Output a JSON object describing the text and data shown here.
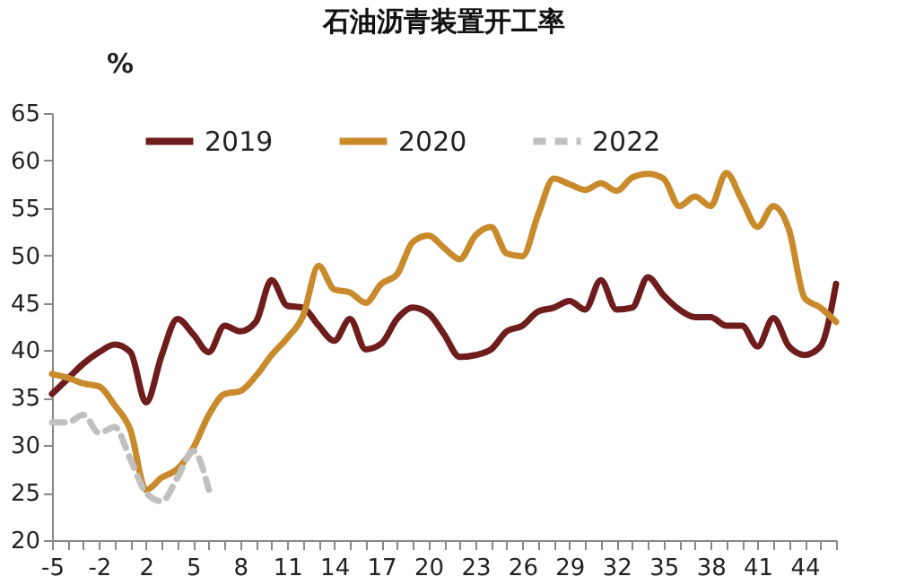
{
  "chart_data": {
    "type": "line",
    "title": "石油沥青装置开工率",
    "ylabel": "%",
    "categories": [
      "-5",
      null,
      null,
      "-2",
      null,
      null,
      "2",
      null,
      null,
      "5",
      null,
      null,
      "8",
      null,
      null,
      "11",
      null,
      null,
      "14",
      null,
      null,
      "17",
      null,
      null,
      "20",
      null,
      null,
      "23",
      null,
      null,
      "26",
      null,
      null,
      "29",
      null,
      null,
      "32",
      null,
      null,
      "35",
      null,
      null,
      "38",
      null,
      null,
      "41",
      null,
      null,
      "44",
      null,
      null
    ],
    "series": [
      {
        "name": "2019",
        "color": "#6e1c1c",
        "line_style": "solid",
        "values": [
          35.4,
          37,
          38.6,
          39.8,
          40.6,
          39.8,
          34.5,
          39.5,
          43.3,
          41.7,
          39.8,
          42.6,
          42,
          43,
          47.4,
          44.7,
          44.5,
          42.6,
          41,
          43.3,
          40.1,
          40.7,
          43.3,
          44.5,
          43.9,
          41.7,
          39.3,
          39.5,
          40.1,
          42,
          42.6,
          44.1,
          44.5,
          45.2,
          44.3,
          47.4,
          44.3,
          44.5,
          47.7,
          45.8,
          44.3,
          43.5,
          43.5,
          42.6,
          42.6,
          40.4,
          43.4,
          40.4,
          39.5,
          40.4,
          47
        ]
      },
      {
        "name": "2020",
        "color": "#c98a2c",
        "line_style": "solid",
        "values": [
          37.5,
          37.1,
          36.5,
          36.2,
          34.2,
          31.6,
          25.3,
          26.6,
          27.5,
          29.7,
          33.2,
          35.4,
          35.7,
          37.3,
          39.5,
          41.3,
          43.6,
          48.9,
          46.4,
          46.1,
          45,
          47,
          48,
          51.4,
          52.1,
          50.8,
          49.6,
          52.1,
          53,
          50.2,
          49.9,
          54.3,
          58.1,
          57.5,
          56.9,
          57.6,
          56.8,
          58.2,
          58.6,
          58.1,
          55.2,
          56.2,
          55.2,
          58.7,
          55.8,
          53,
          55.2,
          52.7,
          45.5,
          44.5,
          43
        ]
      },
      {
        "name": "2022",
        "color": "#c0c0c0",
        "line_style": "dashed",
        "values": [
          32.4,
          32.4,
          33.2,
          31.3,
          31.9,
          28.5,
          25,
          24.1,
          26.6,
          29.4,
          25.3,
          null,
          null,
          null,
          null,
          null,
          null,
          null,
          null,
          null,
          null,
          null,
          null,
          null,
          null,
          null,
          null,
          null,
          null,
          null,
          null,
          null,
          null,
          null,
          null,
          null,
          null,
          null,
          null,
          null,
          null,
          null,
          null,
          null,
          null,
          null,
          null,
          null,
          null,
          null,
          null
        ]
      }
    ],
    "ylim": [
      20,
      65
    ],
    "yticks": [
      20,
      25,
      30,
      35,
      40,
      45,
      50,
      55,
      60,
      65
    ],
    "grid": false,
    "legend": "top",
    "marker": "none"
  }
}
